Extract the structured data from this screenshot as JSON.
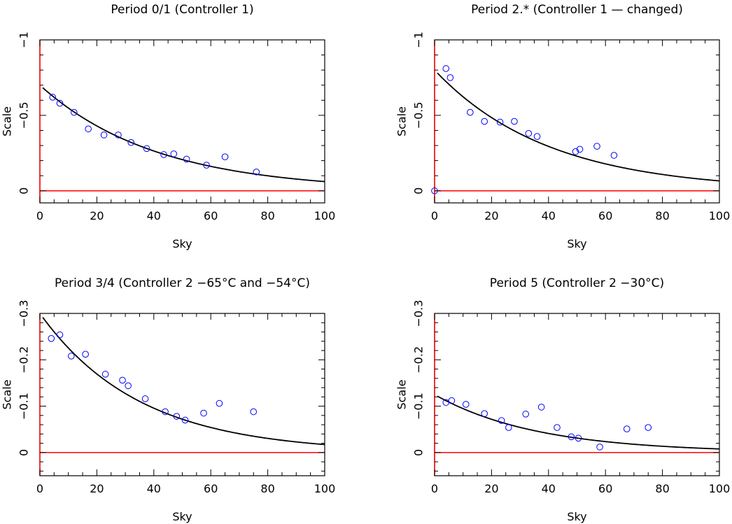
{
  "colors": {
    "axes": "#000000",
    "zero_line": "#ff0000",
    "points": "#0000ff",
    "fit_curve": "#000000"
  },
  "chart_data": [
    {
      "type": "scatter",
      "title": "Period 0/1    (Controller 1)",
      "xlabel": "Sky",
      "ylabel": "Scale",
      "xlim": [
        0,
        100
      ],
      "ylim": [
        0.08,
        -1
      ],
      "xticks": [
        0,
        20,
        40,
        60,
        80,
        100
      ],
      "xtick_labels": [
        "0",
        "20",
        "40",
        "60",
        "80",
        "100"
      ],
      "yticks": [
        0,
        -0.5,
        -1
      ],
      "ytick_labels": [
        "0",
        "−0.5",
        "−1"
      ],
      "zero_line": 0,
      "points": [
        {
          "x": 4.5,
          "y": -0.62
        },
        {
          "x": 7,
          "y": -0.58
        },
        {
          "x": 12,
          "y": -0.52
        },
        {
          "x": 17,
          "y": -0.41
        },
        {
          "x": 22.5,
          "y": -0.37
        },
        {
          "x": 27.5,
          "y": -0.37
        },
        {
          "x": 32,
          "y": -0.32
        },
        {
          "x": 37.5,
          "y": -0.28
        },
        {
          "x": 43.5,
          "y": -0.24
        },
        {
          "x": 47,
          "y": -0.245
        },
        {
          "x": 51.5,
          "y": -0.21
        },
        {
          "x": 58.5,
          "y": -0.17
        },
        {
          "x": 65,
          "y": -0.225
        },
        {
          "x": 76,
          "y": -0.125
        }
      ],
      "fit_curve": {
        "model": "y = a*exp(-x/b)",
        "a": -0.7,
        "b": 41
      }
    },
    {
      "type": "scatter",
      "title": "Period 2.*    (Controller 1  — changed)",
      "xlabel": "Sky",
      "ylabel": "Scale",
      "xlim": [
        0,
        100
      ],
      "ylim": [
        0.08,
        -1
      ],
      "xticks": [
        0,
        20,
        40,
        60,
        80,
        100
      ],
      "xtick_labels": [
        "0",
        "20",
        "40",
        "60",
        "80",
        "100"
      ],
      "yticks": [
        0,
        -0.5,
        -1
      ],
      "ytick_labels": [
        "0",
        "−0.5",
        "−1"
      ],
      "zero_line": 0,
      "points": [
        {
          "x": 0,
          "y": 0
        },
        {
          "x": 4,
          "y": -0.81
        },
        {
          "x": 5.5,
          "y": -0.75
        },
        {
          "x": 12.5,
          "y": -0.52
        },
        {
          "x": 17.5,
          "y": -0.46
        },
        {
          "x": 23,
          "y": -0.455
        },
        {
          "x": 28,
          "y": -0.46
        },
        {
          "x": 33,
          "y": -0.38
        },
        {
          "x": 36,
          "y": -0.36
        },
        {
          "x": 49.5,
          "y": -0.26
        },
        {
          "x": 51,
          "y": -0.275
        },
        {
          "x": 57,
          "y": -0.295
        },
        {
          "x": 63,
          "y": -0.235
        }
      ],
      "fit_curve": {
        "model": "y = a*exp(-x/b)",
        "a": -0.8,
        "b": 40
      }
    },
    {
      "type": "scatter",
      "title": "Period 3/4    (Controller 2   −65°C and −54°C)",
      "xlabel": "Sky",
      "ylabel": "Scale",
      "xlim": [
        0,
        100
      ],
      "ylim": [
        0.05,
        -0.3
      ],
      "xticks": [
        0,
        20,
        40,
        60,
        80,
        100
      ],
      "xtick_labels": [
        "0",
        "20",
        "40",
        "60",
        "80",
        "100"
      ],
      "yticks": [
        0,
        -0.1,
        -0.2,
        -0.3
      ],
      "ytick_labels": [
        "0",
        "−0.1",
        "−0.2",
        "−0.3"
      ],
      "zero_line": 0,
      "points": [
        {
          "x": 4,
          "y": -0.246
        },
        {
          "x": 7,
          "y": -0.254
        },
        {
          "x": 11,
          "y": -0.208
        },
        {
          "x": 16,
          "y": -0.212
        },
        {
          "x": 23,
          "y": -0.169
        },
        {
          "x": 29,
          "y": -0.156
        },
        {
          "x": 31,
          "y": -0.144
        },
        {
          "x": 37,
          "y": -0.116
        },
        {
          "x": 44,
          "y": -0.088
        },
        {
          "x": 48,
          "y": -0.078
        },
        {
          "x": 51,
          "y": -0.07
        },
        {
          "x": 57.5,
          "y": -0.085
        },
        {
          "x": 63,
          "y": -0.106
        },
        {
          "x": 75,
          "y": -0.088
        }
      ],
      "fit_curve": {
        "model": "y = a*exp(-x/b)",
        "a": -0.3,
        "b": 35
      }
    },
    {
      "type": "scatter",
      "title": "Period 5    (Controller 2   −30°C)",
      "xlabel": "Sky",
      "ylabel": "Scale",
      "xlim": [
        0,
        100
      ],
      "ylim": [
        0.05,
        -0.3
      ],
      "xticks": [
        0,
        20,
        40,
        60,
        80,
        100
      ],
      "xtick_labels": [
        "0",
        "20",
        "40",
        "60",
        "80",
        "100"
      ],
      "yticks": [
        0,
        -0.1,
        -0.2,
        -0.3
      ],
      "ytick_labels": [
        "0",
        "−0.1",
        "−0.2",
        "−0.3"
      ],
      "zero_line": 0,
      "points": [
        {
          "x": 4,
          "y": -0.108
        },
        {
          "x": 6,
          "y": -0.112
        },
        {
          "x": 11,
          "y": -0.104
        },
        {
          "x": 17.5,
          "y": -0.084
        },
        {
          "x": 23.5,
          "y": -0.069
        },
        {
          "x": 26,
          "y": -0.054
        },
        {
          "x": 32,
          "y": -0.083
        },
        {
          "x": 37.5,
          "y": -0.098
        },
        {
          "x": 43,
          "y": -0.054
        },
        {
          "x": 48,
          "y": -0.034
        },
        {
          "x": 50.5,
          "y": -0.031
        },
        {
          "x": 58,
          "y": -0.012
        },
        {
          "x": 67.5,
          "y": -0.051
        },
        {
          "x": 75,
          "y": -0.054
        }
      ],
      "fit_curve": {
        "model": "y = a*exp(-x/b)",
        "a": -0.125,
        "b": 36
      }
    }
  ]
}
